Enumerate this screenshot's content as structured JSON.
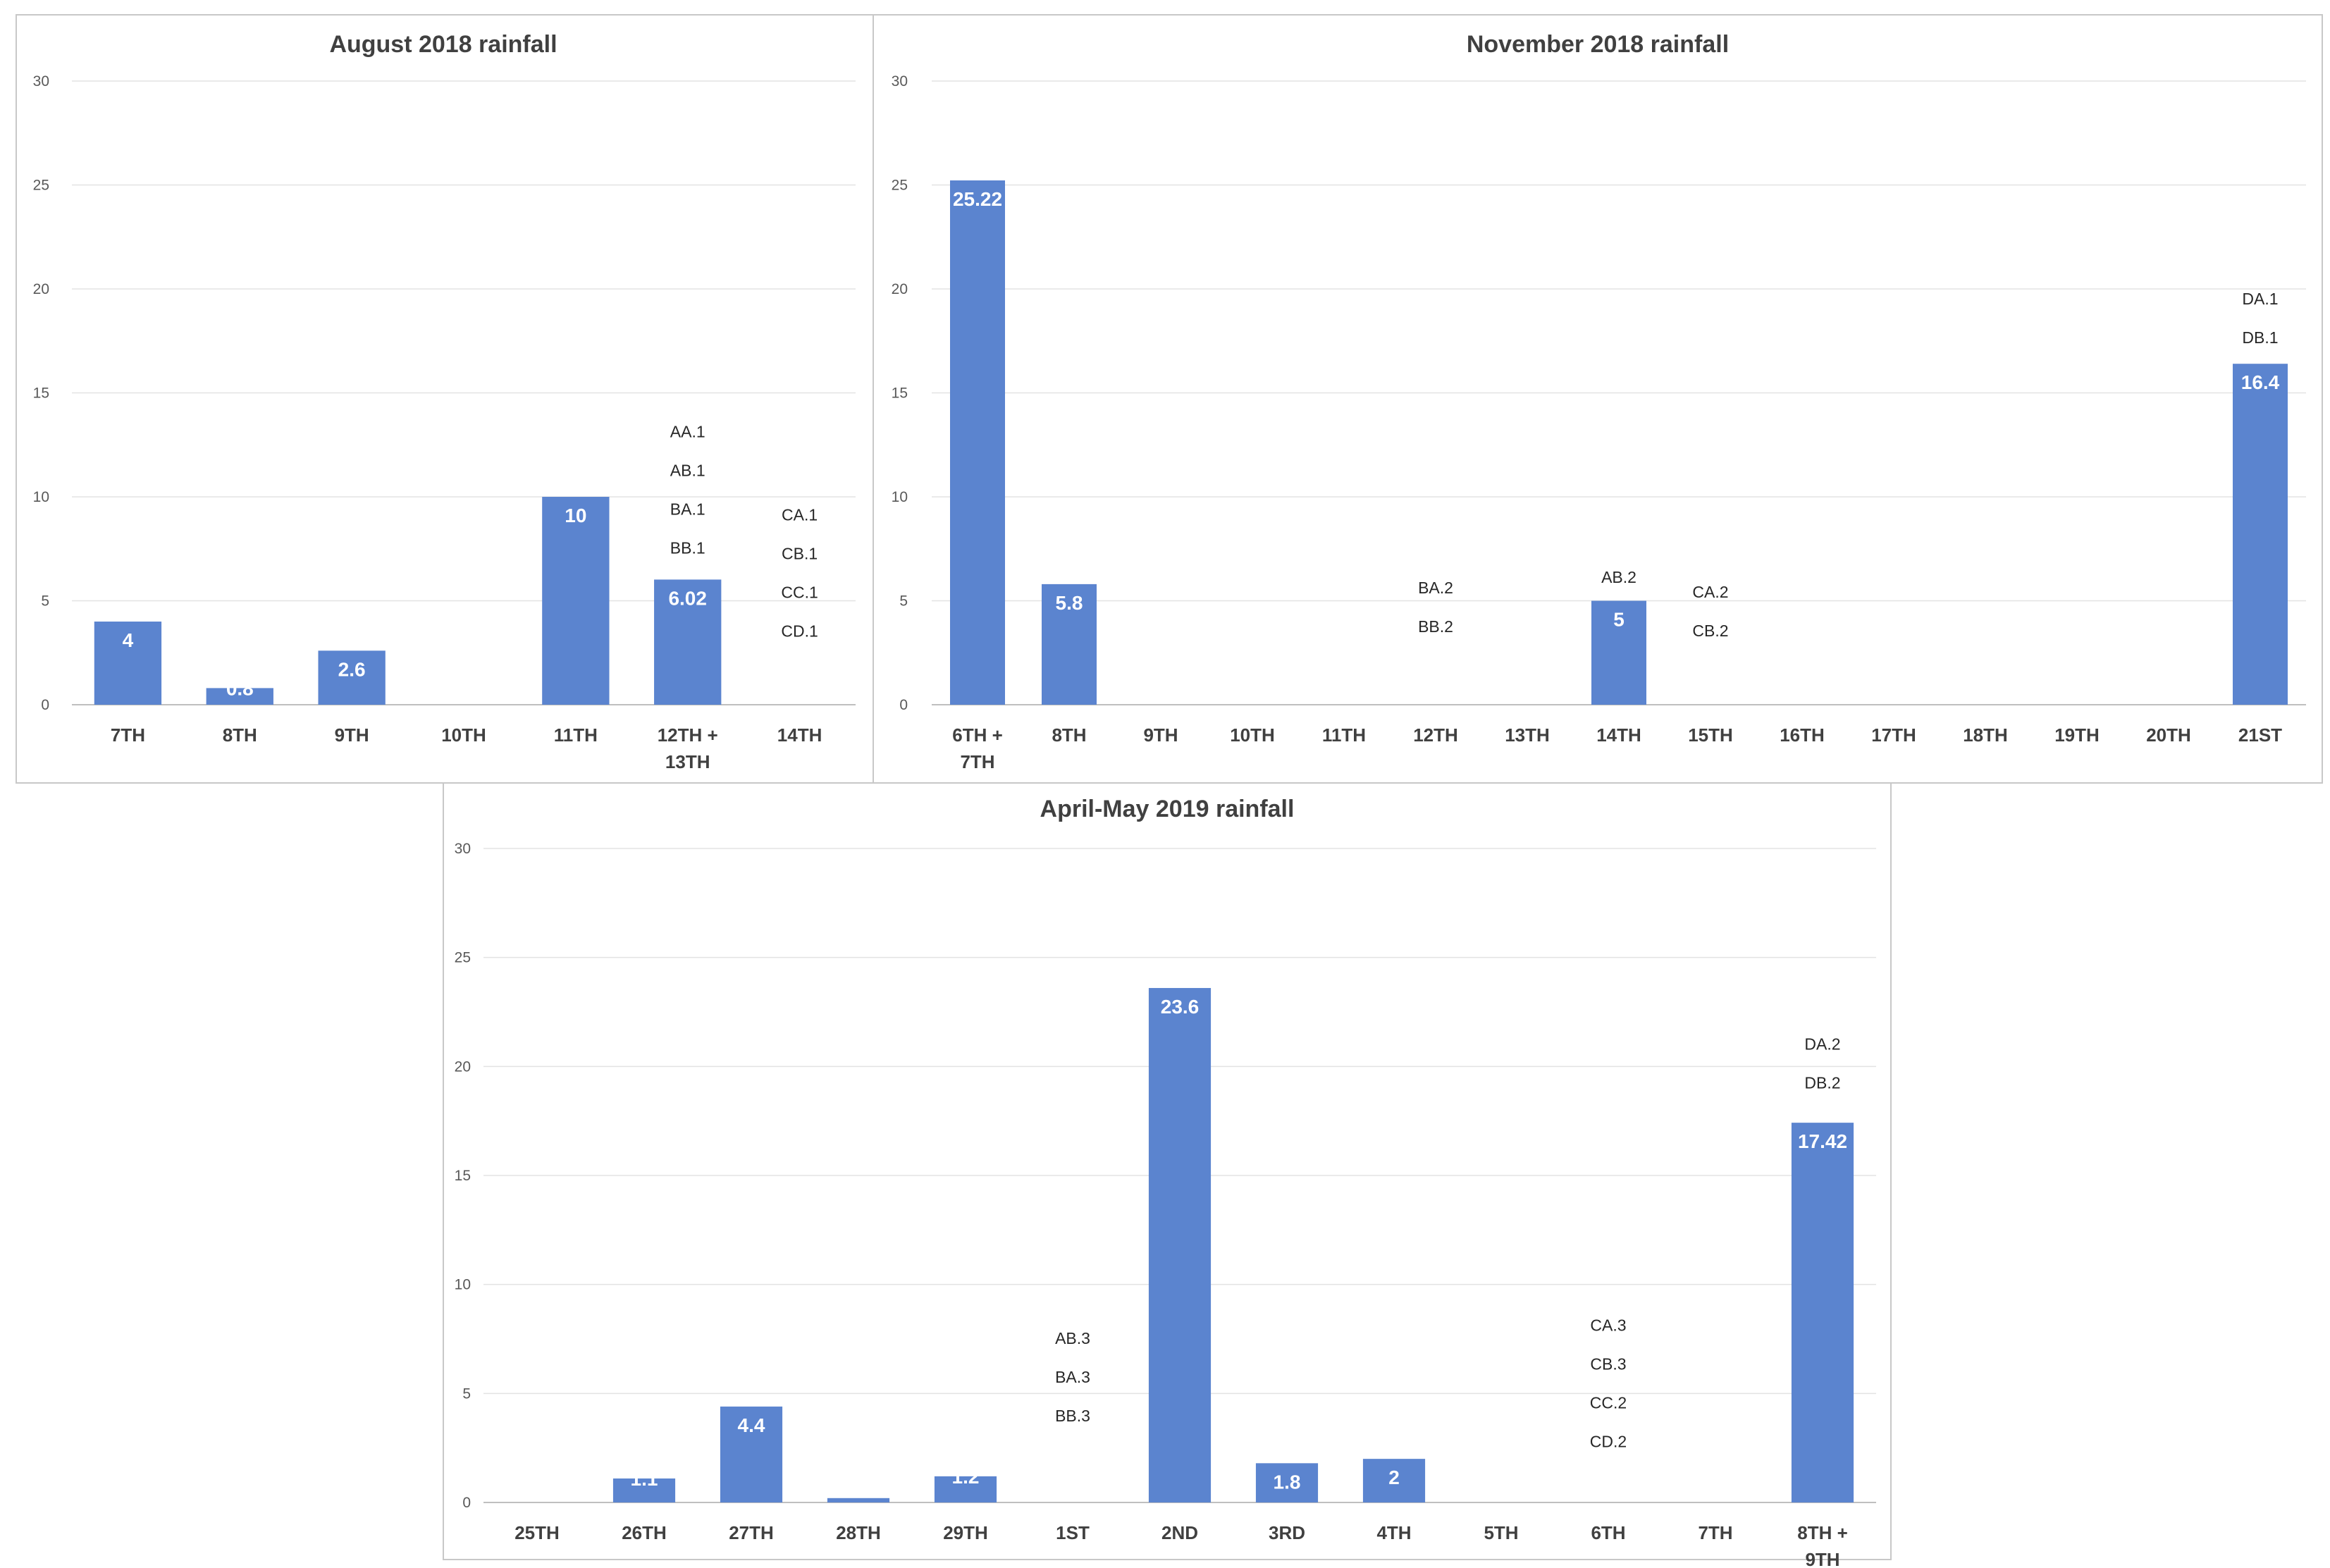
{
  "chart_data": [
    {
      "type": "bar",
      "title": "August 2018 rainfall",
      "categories": [
        "7TH",
        "8TH",
        "9TH",
        "10TH",
        "11TH",
        "12TH + 13TH",
        "14TH"
      ],
      "values": [
        4,
        0.8,
        2.6,
        0,
        10,
        6.02,
        0
      ],
      "data_labels": [
        "4",
        "0.8",
        "2.6",
        "",
        "10",
        "6.02",
        ""
      ],
      "ylim": [
        0,
        30
      ],
      "yticks": [
        0,
        5,
        10,
        15,
        20,
        25,
        30
      ],
      "grid": true,
      "bar_color": "#5b84cf",
      "annotations": [
        {
          "category": "12TH + 13TH",
          "lines": [
            "AA.1",
            "AB.1",
            "BA.1",
            "BB.1"
          ],
          "y_top": 13.2
        },
        {
          "category": "14TH",
          "lines": [
            "CA.1",
            "CB.1",
            "CC.1",
            "CD.1"
          ],
          "y_top": 9.2
        }
      ]
    },
    {
      "type": "bar",
      "title": "November 2018 rainfall",
      "categories": [
        "6TH + 7TH",
        "8TH",
        "9TH",
        "10TH",
        "11TH",
        "12TH",
        "13TH",
        "14TH",
        "15TH",
        "16TH",
        "17TH",
        "18TH",
        "19TH",
        "20TH",
        "21ST"
      ],
      "values": [
        25.22,
        5.8,
        0,
        0,
        0,
        0,
        0,
        5,
        0,
        0,
        0,
        0,
        0,
        0,
        16.4
      ],
      "data_labels": [
        "25.22",
        "5.8",
        "",
        "",
        "",
        "",
        "",
        "5",
        "",
        "",
        "",
        "",
        "",
        "",
        "16.4"
      ],
      "ylim": [
        0,
        30
      ],
      "yticks": [
        0,
        5,
        10,
        15,
        20,
        25,
        30
      ],
      "grid": true,
      "bar_color": "#5b84cf",
      "annotations": [
        {
          "category": "12TH",
          "lines": [
            "BA.2",
            "BB.2"
          ],
          "y_top": 5.7
        },
        {
          "category": "14TH",
          "lines": [
            "AB.2"
          ],
          "y_top": 6.2
        },
        {
          "category": "15TH",
          "lines": [
            "CA.2",
            "CB.2"
          ],
          "y_top": 5.5
        },
        {
          "category": "21ST",
          "lines": [
            "DA.1",
            "DB.1"
          ],
          "y_top": 19.6
        }
      ]
    },
    {
      "type": "bar",
      "title": "April-May 2019 rainfall",
      "categories": [
        "25TH",
        "26TH",
        "27TH",
        "28TH",
        "29TH",
        "1ST",
        "2ND",
        "3RD",
        "4TH",
        "5TH",
        "6TH",
        "7TH",
        "8TH + 9TH"
      ],
      "values": [
        0,
        1.1,
        4.4,
        0.2,
        1.2,
        0,
        23.6,
        1.8,
        2,
        0,
        0,
        0,
        17.42
      ],
      "data_labels": [
        "",
        "1.1",
        "4.4",
        "",
        "1.2",
        "",
        "23.6",
        "1.8",
        "2",
        "",
        "",
        "",
        "17.42"
      ],
      "ylim": [
        0,
        30
      ],
      "yticks": [
        0,
        5,
        10,
        15,
        20,
        25,
        30
      ],
      "grid": true,
      "bar_color": "#5b84cf",
      "annotations": [
        {
          "category": "1ST",
          "lines": [
            "AB.3",
            "BA.3",
            "BB.3"
          ],
          "y_top": 7.6
        },
        {
          "category": "6TH",
          "lines": [
            "CA.3",
            "CB.3",
            "CC.2",
            "CD.2"
          ],
          "y_top": 8.2
        },
        {
          "category": "8TH + 9TH",
          "lines": [
            "DA.2",
            "DB.2"
          ],
          "y_top": 21.1
        }
      ]
    }
  ]
}
